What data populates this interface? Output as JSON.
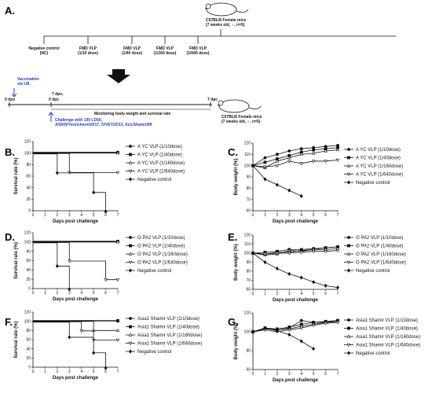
{
  "scheme": {
    "letter": "A.",
    "mouse_top_line1": "C57BL/6 Female mice",
    "mouse_top_line2": "(7 weeks old, ♀, n=5)",
    "groups": [
      {
        "line1": "Negative control",
        "line2": "(NC)"
      },
      {
        "line1": "FMD VLP",
        "line2": "(1/10 dose)"
      },
      {
        "line1": "FMD VLP",
        "line2": "(1/40 dose)"
      },
      {
        "line1": "FMD VLP",
        "line2": "(1/160 dose)"
      },
      {
        "line1": "FMD VLP",
        "line2": "(1/640 dose)"
      }
    ],
    "vaccination_line1": "Vaccination",
    "vaccination_line2": "via I.M.",
    "dpv0": "0 dpv",
    "dpv7": "7 dpv,",
    "dpc0": "0 dpc",
    "dpc7": "7 dpc",
    "monitoring": "Monitering body weight and survival rate",
    "challenge_line1": "Challenge with 100 LD50,",
    "challenge_line2": "A/SKR/Yeoncheon/2017, O/VET/2013, As1/Shamir/89",
    "mouse_bottom_line1": "C57BL/6 Female mice",
    "mouse_bottom_line2": "(7 weeks old, ♀, n=5)",
    "accent": "#1f3fbf"
  },
  "chart_data": [
    {
      "letter": "B.",
      "type": "line",
      "xlabel": "Days post challenge",
      "ylabel": "Survival rate (%)",
      "xlim": [
        0,
        7
      ],
      "ylim": [
        0,
        120
      ],
      "yticks": [
        0,
        20,
        40,
        60,
        80,
        100,
        120
      ],
      "xticks": [
        "0",
        "1",
        "2",
        "3",
        "4",
        "5",
        "6",
        "7"
      ],
      "step": true,
      "series": [
        {
          "name": "A YC VLP (1/10dose)",
          "marker": "circle",
          "x": [
            0,
            7
          ],
          "y": [
            100,
            100
          ]
        },
        {
          "name": "A YC VLP (1/40dose)",
          "marker": "square",
          "x": [
            0,
            7
          ],
          "y": [
            100,
            100
          ]
        },
        {
          "name": "A YC VLP (1/160dose)",
          "marker": "triangle",
          "x": [
            0,
            7
          ],
          "y": [
            100,
            100
          ]
        },
        {
          "name": "A YC VLP (1/640dose)",
          "marker": "triangle-down",
          "x": [
            0,
            3,
            7
          ],
          "y": [
            100,
            67,
            67
          ]
        },
        {
          "name": "Negative control",
          "marker": "diamond",
          "x": [
            0,
            2,
            5,
            6
          ],
          "y": [
            100,
            67,
            33,
            0
          ]
        }
      ]
    },
    {
      "letter": "C.",
      "type": "line",
      "xlabel": "Days post challenge",
      "ylabel": "Body weight (%)",
      "xlim": [
        0,
        7
      ],
      "ylim": [
        60,
        120
      ],
      "yticks": [
        60,
        70,
        80,
        90,
        100,
        110,
        120
      ],
      "xticks": [
        "0",
        "1",
        "2",
        "3",
        "4",
        "5",
        "6",
        "7"
      ],
      "step": false,
      "series": [
        {
          "name": "A YC VLP (1/10dose)",
          "marker": "circle",
          "x": [
            0,
            1,
            2,
            3,
            4,
            5,
            6,
            7
          ],
          "y": [
            100,
            107,
            110,
            113,
            115,
            116,
            117,
            118
          ]
        },
        {
          "name": "A YC VLP (1/40dose)",
          "marker": "square",
          "x": [
            0,
            1,
            2,
            3,
            4,
            5,
            6,
            7
          ],
          "y": [
            100,
            103,
            106,
            109,
            112,
            114,
            115,
            116
          ]
        },
        {
          "name": "A YC VLP (1/160dose)",
          "marker": "triangle",
          "x": [
            0,
            1,
            2,
            3,
            4,
            5,
            6,
            7
          ],
          "y": [
            100,
            98,
            104,
            107,
            110,
            111,
            113,
            114
          ]
        },
        {
          "name": "A YC VLP (1/640dose)",
          "marker": "triangle-down",
          "x": [
            0,
            1,
            2,
            3,
            4,
            5,
            6,
            7
          ],
          "y": [
            100,
            99,
            100,
            104,
            102,
            104,
            104,
            105
          ]
        },
        {
          "name": "Negative control",
          "marker": "diamond",
          "x": [
            0,
            1,
            2,
            3,
            4
          ],
          "y": [
            100,
            88,
            83,
            78,
            73
          ]
        }
      ]
    },
    {
      "letter": "D.",
      "type": "line",
      "xlabel": "Days post challenge",
      "ylabel": "Survival rate (%)",
      "xlim": [
        0,
        7
      ],
      "ylim": [
        0,
        120
      ],
      "yticks": [
        0,
        20,
        40,
        60,
        80,
        100,
        120
      ],
      "xticks": [
        "0",
        "1",
        "2",
        "3",
        "4",
        "5",
        "6",
        "7"
      ],
      "step": true,
      "series": [
        {
          "name": "O PA2 VLP (1/10dose)",
          "marker": "circle",
          "x": [
            0,
            7
          ],
          "y": [
            100,
            100
          ]
        },
        {
          "name": "O PA2 VLP (1/40dose)",
          "marker": "square",
          "x": [
            0,
            7
          ],
          "y": [
            100,
            100
          ]
        },
        {
          "name": "O PA2 VLP (1/160dose)",
          "marker": "triangle",
          "x": [
            0,
            7
          ],
          "y": [
            100,
            100
          ]
        },
        {
          "name": "O PA2 VLP (1/640dose)",
          "marker": "triangle-down",
          "x": [
            0,
            3,
            6,
            7
          ],
          "y": [
            100,
            60,
            20,
            20
          ]
        },
        {
          "name": "Negative control",
          "marker": "diamond",
          "x": [
            0,
            2,
            3
          ],
          "y": [
            100,
            50,
            0
          ]
        }
      ]
    },
    {
      "letter": "E.",
      "type": "line",
      "xlabel": "Days post challenge",
      "ylabel": "Body weight (%)",
      "xlim": [
        0,
        7
      ],
      "ylim": [
        60,
        120
      ],
      "yticks": [
        60,
        70,
        80,
        90,
        100,
        110,
        120
      ],
      "xticks": [
        "0",
        "1",
        "2",
        "3",
        "4",
        "5",
        "6",
        "7"
      ],
      "step": false,
      "series": [
        {
          "name": "O PA2 VLP (1/10dose)",
          "marker": "circle",
          "x": [
            0,
            1,
            2,
            3,
            4,
            5,
            6,
            7
          ],
          "y": [
            100,
            99,
            101,
            101,
            103,
            104,
            106,
            107
          ]
        },
        {
          "name": "O PA2 VLP (1/40dose)",
          "marker": "square",
          "x": [
            0,
            1,
            2,
            3,
            4,
            5,
            6,
            7
          ],
          "y": [
            100,
            101,
            102,
            104,
            104,
            105,
            106,
            107
          ]
        },
        {
          "name": "O PA2 VLP (1/160dose)",
          "marker": "triangle",
          "x": [
            0,
            1,
            2,
            3,
            4,
            5,
            6,
            7
          ],
          "y": [
            100,
            98,
            99,
            103,
            102,
            104,
            104,
            105
          ]
        },
        {
          "name": "O PA2 VLP (1/640dose)",
          "marker": "triangle-down",
          "x": [
            0,
            1,
            2,
            3,
            4,
            5,
            6,
            7
          ],
          "y": [
            100,
            99,
            100,
            100,
            101,
            102,
            102,
            103
          ]
        },
        {
          "name": "Negative control",
          "marker": "diamond",
          "x": [
            0,
            1,
            2,
            3,
            4,
            5,
            6,
            7
          ],
          "y": [
            100,
            90,
            83,
            77,
            73,
            68,
            64,
            62
          ]
        }
      ]
    },
    {
      "letter": "F.",
      "type": "line",
      "xlabel": "Days post challenge",
      "ylabel": "Survival rate (%)",
      "xlim": [
        0,
        7
      ],
      "ylim": [
        0,
        120
      ],
      "yticks": [
        0,
        20,
        40,
        60,
        80,
        100,
        120
      ],
      "xticks": [
        "0",
        "1",
        "2",
        "3",
        "4",
        "5",
        "6",
        "7"
      ],
      "step": true,
      "series": [
        {
          "name": "Asia1 Shamir VLP (1/10dose)",
          "marker": "circle",
          "x": [
            0,
            7
          ],
          "y": [
            100,
            100
          ]
        },
        {
          "name": "Asia1 Shamir VLP (1/40dose)",
          "marker": "square",
          "x": [
            0,
            7
          ],
          "y": [
            100,
            100
          ]
        },
        {
          "name": "Asia1 Shamir VLP (1/160dose)",
          "marker": "triangle",
          "x": [
            0,
            5,
            7
          ],
          "y": [
            100,
            80,
            80
          ]
        },
        {
          "name": "Asia1 Shamir VLP (1/640dose)",
          "marker": "triangle-down",
          "x": [
            0,
            4,
            5,
            7
          ],
          "y": [
            100,
            80,
            60,
            60
          ]
        },
        {
          "name": "Negative control",
          "marker": "diamond",
          "x": [
            0,
            3,
            5,
            6
          ],
          "y": [
            100,
            67,
            33,
            0
          ]
        }
      ]
    },
    {
      "letter": "G.",
      "type": "line",
      "xlabel": "Days post challenge",
      "ylabel": "Body weight (%)",
      "xlim": [
        0,
        7
      ],
      "ylim": [
        60,
        120
      ],
      "yticks": [
        60,
        80,
        100,
        120
      ],
      "xticks": [
        "0",
        "1",
        "2",
        "3",
        "4",
        "5",
        "6",
        "7"
      ],
      "step": false,
      "series": [
        {
          "name": "Asia1 Shamir VLP (1/10dose)",
          "marker": "circle",
          "x": [
            0,
            1,
            2,
            3,
            4,
            5,
            6,
            7
          ],
          "y": [
            100,
            104,
            102,
            104,
            112,
            110,
            110,
            112
          ]
        },
        {
          "name": "Asia1 Shamir VLP (1/40dose)",
          "marker": "square",
          "x": [
            0,
            1,
            2,
            3,
            4,
            5,
            6,
            7
          ],
          "y": [
            100,
            104,
            103,
            105,
            108,
            110,
            111,
            112
          ]
        },
        {
          "name": "Asia1 Shamir VLP (1/160dose)",
          "marker": "triangle",
          "x": [
            0,
            1,
            2,
            3,
            4,
            5,
            6,
            7
          ],
          "y": [
            100,
            103,
            102,
            103,
            106,
            108,
            110,
            111
          ]
        },
        {
          "name": "Asia1 Shamir VLP (1/640dose)",
          "marker": "triangle-down",
          "x": [
            0,
            1,
            2,
            3,
            4,
            5,
            6,
            7
          ],
          "y": [
            100,
            102,
            100,
            102,
            104,
            107,
            109,
            110
          ]
        },
        {
          "name": "Negative control",
          "marker": "diamond",
          "x": [
            0,
            1,
            2,
            3,
            4,
            5
          ],
          "y": [
            100,
            104,
            101,
            97,
            90,
            82
          ]
        }
      ]
    }
  ]
}
